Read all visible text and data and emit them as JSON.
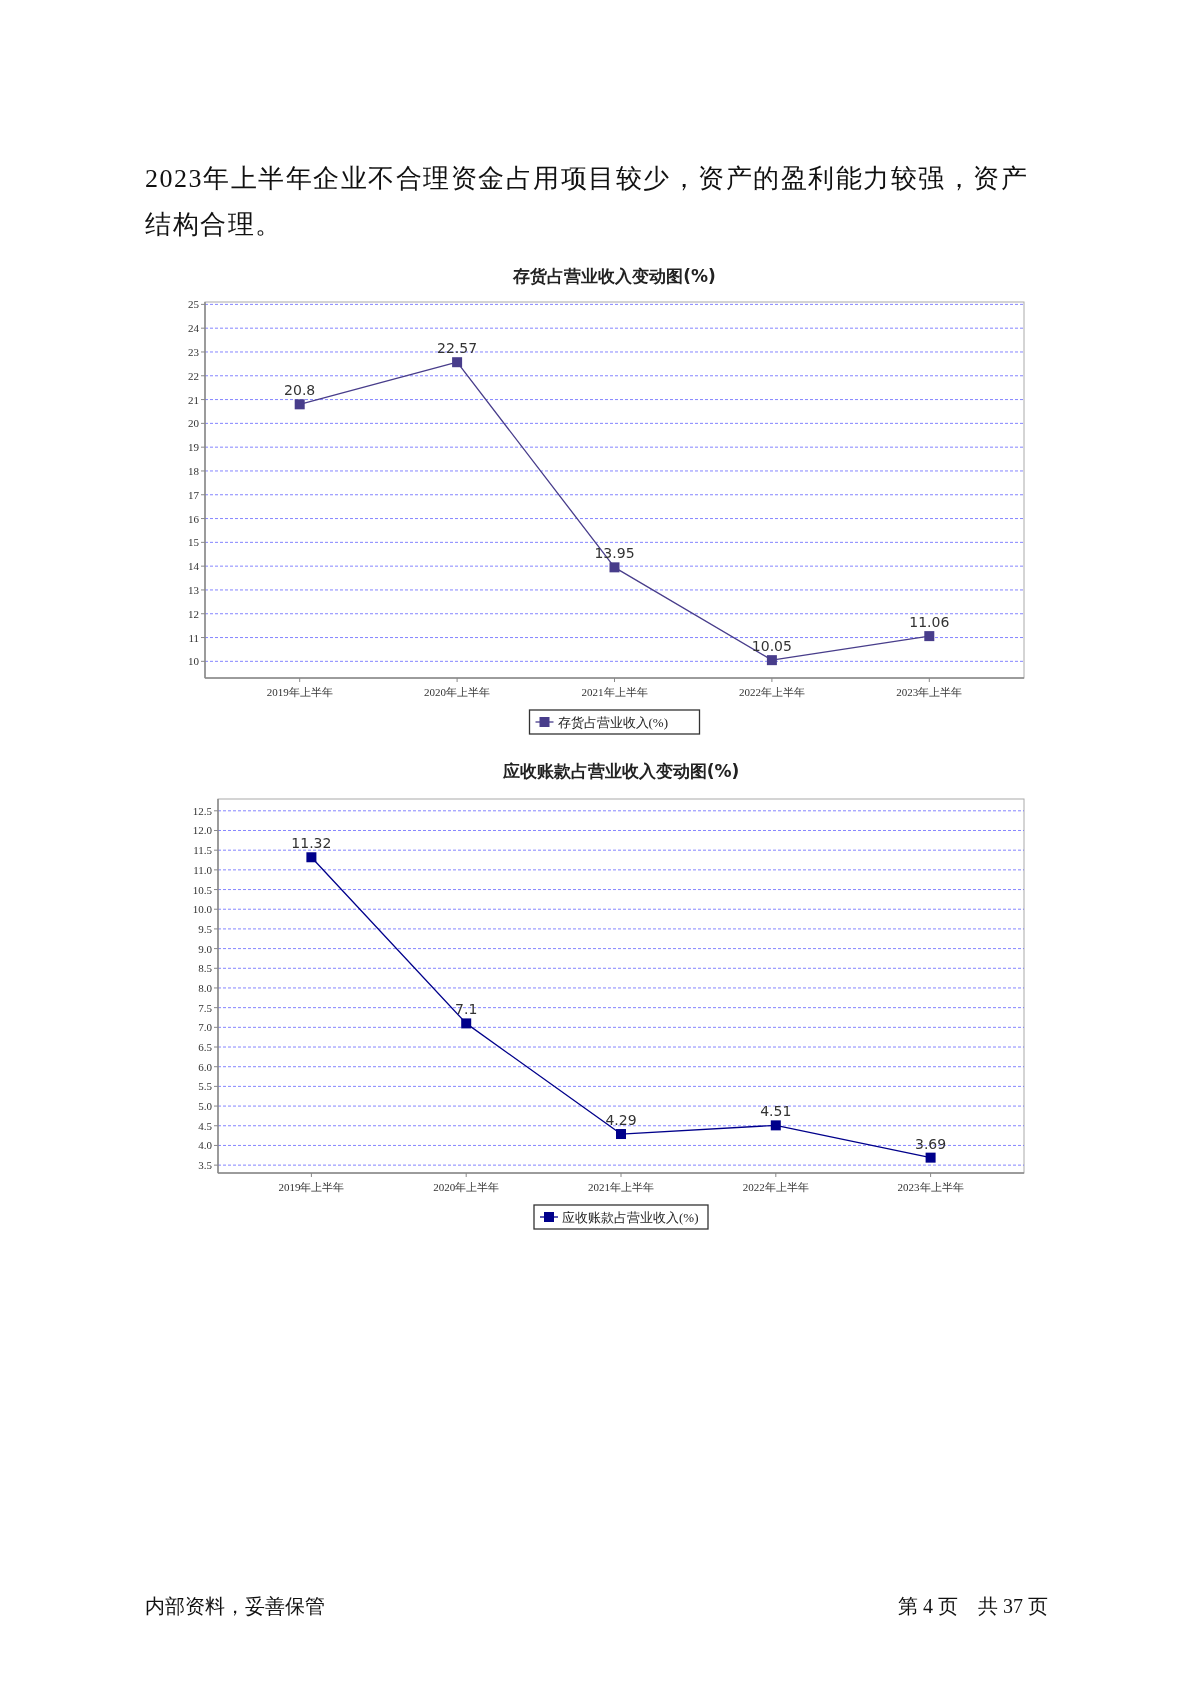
{
  "chart_data": [
    {
      "type": "line",
      "title": "存货占营业收入变动图(%)",
      "annotations": [
        "2023年上半年企业不合理资金占用项目较少，资产的盈利能力较强，资产结构合理。"
      ],
      "categories": [
        "2019年上半年",
        "2020年上半年",
        "2021年上半年",
        "2022年上半年",
        "2023年上半年"
      ],
      "series": [
        {
          "name": "存货占营业收入(%)",
          "color": "#483d8b",
          "values": [
            20.8,
            22.57,
            13.95,
            10.05,
            11.06
          ]
        }
      ],
      "ylim": [
        9.3,
        25.1
      ],
      "yticks": [
        10,
        11,
        12,
        13,
        14,
        15,
        16,
        17,
        18,
        19,
        20,
        21,
        22,
        23,
        24,
        25
      ],
      "grid": "y",
      "legend": "bottom",
      "marker": "square",
      "line_style": "solid",
      "data_labels": true
    },
    {
      "type": "line",
      "title": "应收账款占营业收入变动图(%)",
      "annotations": [
        "内部资料，妥善保管",
        "第 4 页　共 37 页"
      ],
      "categories": [
        "2019年上半年",
        "2020年上半年",
        "2021年上半年",
        "2022年上半年",
        "2023年上半年"
      ],
      "series": [
        {
          "name": "应收账款占营业收入(%)",
          "color": "#00008b",
          "values": [
            11.32,
            7.1,
            4.29,
            4.51,
            3.69
          ]
        }
      ],
      "ylim": [
        3.3,
        12.8
      ],
      "yticks": [
        {
          "value": 3.5,
          "label": "3.5"
        },
        {
          "value": 4,
          "label": "4.0"
        },
        {
          "value": 4.5,
          "label": "4.5"
        },
        {
          "value": 5,
          "label": "5.0"
        },
        {
          "value": 5.5,
          "label": "5.5"
        },
        {
          "value": 6,
          "label": "6.0"
        },
        {
          "value": 6.5,
          "label": "6.5"
        },
        {
          "value": 7,
          "label": "7.0"
        },
        {
          "value": 7.5,
          "label": "7.5"
        },
        {
          "value": 8,
          "label": "8.0"
        },
        {
          "value": 8.5,
          "label": "8.5"
        },
        {
          "value": 9,
          "label": "9.0"
        },
        {
          "value": 9.5,
          "label": "9.5"
        },
        {
          "value": 10,
          "label": "10.0"
        },
        {
          "value": 10.5,
          "label": "10.5"
        },
        {
          "value": 11,
          "label": "11.0"
        },
        {
          "value": 11.5,
          "label": "11.5"
        },
        {
          "value": 12,
          "label": "12.0"
        },
        {
          "value": 12.5,
          "label": "12.5"
        }
      ],
      "grid": "y",
      "legend": "bottom",
      "marker": "square",
      "line_style": "solid",
      "data_labels": true
    }
  ]
}
